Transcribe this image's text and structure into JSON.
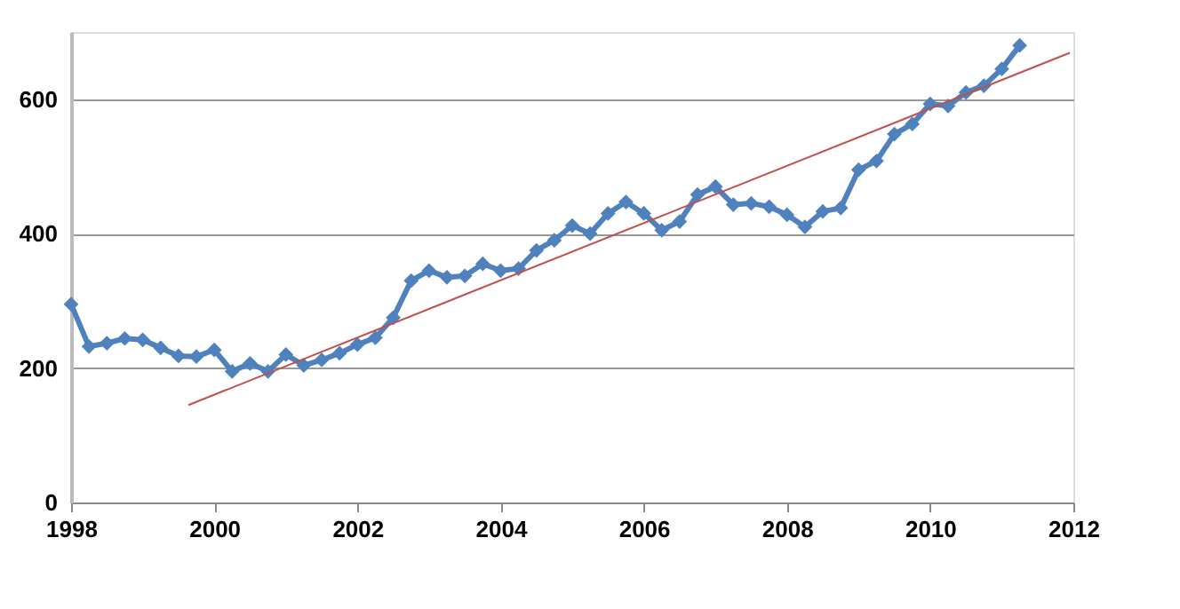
{
  "chart_data": {
    "type": "line",
    "x": [
      1998.0,
      1998.25,
      1998.5,
      1998.75,
      1999.0,
      1999.25,
      1999.5,
      1999.75,
      2000.0,
      2000.25,
      2000.5,
      2000.75,
      2001.0,
      2001.25,
      2001.5,
      2001.75,
      2002.0,
      2002.25,
      2002.5,
      2002.75,
      2003.0,
      2003.25,
      2003.5,
      2003.75,
      2004.0,
      2004.25,
      2004.5,
      2004.75,
      2005.0,
      2005.25,
      2005.5,
      2005.75,
      2006.0,
      2006.25,
      2006.5,
      2006.75,
      2007.0,
      2007.25,
      2007.5,
      2007.75,
      2008.0,
      2008.25,
      2008.5,
      2008.75,
      2009.0,
      2009.25,
      2009.5,
      2009.75,
      2010.0,
      2010.25,
      2010.5,
      2010.75,
      2011.0,
      2011.25
    ],
    "series": [
      {
        "color": "#4f81bd",
        "marker": "diamond",
        "values": [
          295,
          232,
          237,
          244,
          242,
          230,
          218,
          217,
          227,
          195,
          207,
          195,
          220,
          204,
          212,
          222,
          235,
          245,
          275,
          330,
          345,
          335,
          337,
          355,
          345,
          348,
          375,
          390,
          412,
          400,
          430,
          447,
          430,
          405,
          418,
          458,
          470,
          443,
          445,
          440,
          428,
          410,
          433,
          438,
          495,
          508,
          548,
          563,
          593,
          590,
          610,
          620,
          645,
          680
        ]
      },
      {
        "type": "line",
        "color": "#c0504d",
        "marker": "none",
        "x": [
          1999.64,
          2011.95
        ],
        "values": [
          145,
          669
        ]
      }
    ],
    "xlim": [
      1998,
      2012
    ],
    "xticks": [
      1998,
      2000,
      2002,
      2004,
      2006,
      2008,
      2010,
      2012
    ],
    "ylim": [
      0,
      700
    ],
    "yticks": [
      0,
      200,
      400,
      600
    ],
    "grid": "y"
  }
}
